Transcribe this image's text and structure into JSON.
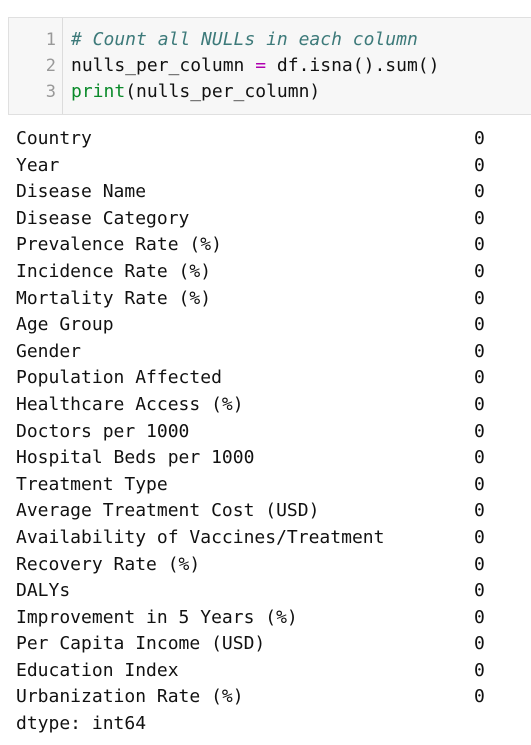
{
  "code_cell": {
    "lines": [
      {
        "number": "1",
        "parts": [
          {
            "text": "# Count all NULLs in each column",
            "kind": "comment"
          }
        ]
      },
      {
        "number": "2",
        "parts": [
          {
            "text": "nulls_per_column ",
            "kind": "plain"
          },
          {
            "text": "=",
            "kind": "op"
          },
          {
            "text": " df.isna().sum()",
            "kind": "plain"
          }
        ]
      },
      {
        "number": "3",
        "parts": [
          {
            "text": "print",
            "kind": "kw-func"
          },
          {
            "text": "(nulls_per_column)",
            "kind": "plain"
          }
        ]
      }
    ]
  },
  "output": {
    "rows": [
      {
        "name": "Country",
        "value": "0"
      },
      {
        "name": "Year",
        "value": "0"
      },
      {
        "name": "Disease Name",
        "value": "0"
      },
      {
        "name": "Disease Category",
        "value": "0"
      },
      {
        "name": "Prevalence Rate (%)",
        "value": "0"
      },
      {
        "name": "Incidence Rate (%)",
        "value": "0"
      },
      {
        "name": "Mortality Rate (%)",
        "value": "0"
      },
      {
        "name": "Age Group",
        "value": "0"
      },
      {
        "name": "Gender",
        "value": "0"
      },
      {
        "name": "Population Affected",
        "value": "0"
      },
      {
        "name": "Healthcare Access (%)",
        "value": "0"
      },
      {
        "name": "Doctors per 1000",
        "value": "0"
      },
      {
        "name": "Hospital Beds per 1000",
        "value": "0"
      },
      {
        "name": "Treatment Type",
        "value": "0"
      },
      {
        "name": "Average Treatment Cost (USD)",
        "value": "0"
      },
      {
        "name": "Availability of Vaccines/Treatment",
        "value": "0"
      },
      {
        "name": "Recovery Rate (%)",
        "value": "0"
      },
      {
        "name": "DALYs",
        "value": "0"
      },
      {
        "name": "Improvement in 5 Years (%)",
        "value": "0"
      },
      {
        "name": "Per Capita Income (USD)",
        "value": "0"
      },
      {
        "name": "Education Index",
        "value": "0"
      },
      {
        "name": "Urbanization Rate (%)",
        "value": "0"
      }
    ],
    "dtype": "dtype: int64"
  },
  "colors": {
    "comment": "#3d7a7a",
    "function": "#0a8a2a",
    "operator": "#b000b0",
    "cell_background": "#f7f7f7"
  }
}
